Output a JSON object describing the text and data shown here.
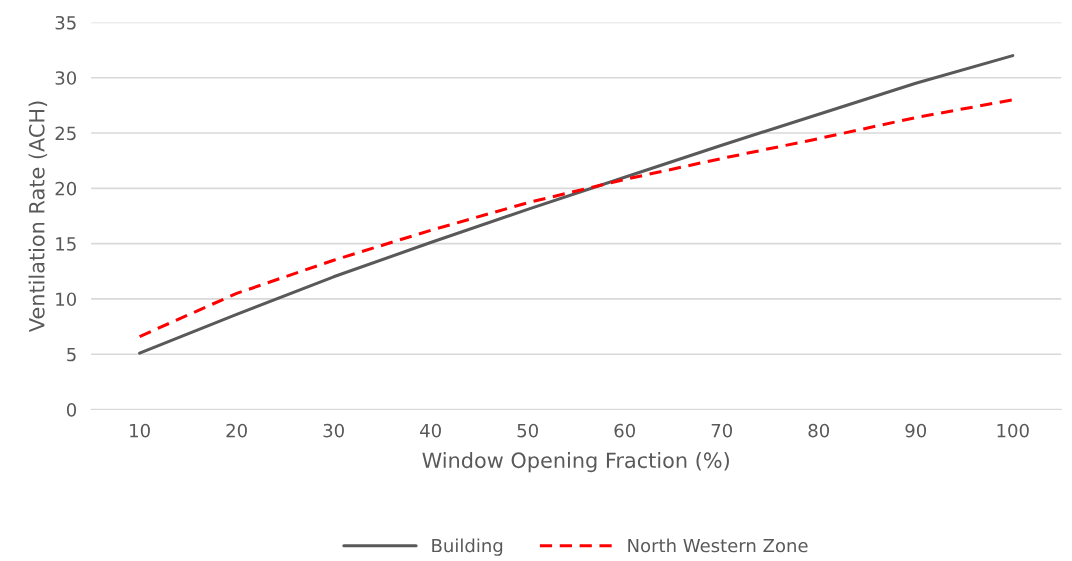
{
  "chart_data": {
    "type": "line",
    "xlabel": "Window Opening Fraction (%)",
    "ylabel": "Ventilation Rate (ACH)",
    "categories": [
      "10",
      "20",
      "30",
      "40",
      "50",
      "60",
      "70",
      "80",
      "90",
      "100"
    ],
    "series": [
      {
        "name": "Building",
        "color": "#595959",
        "line_style": "solid",
        "values": [
          5.1,
          8.6,
          12,
          15.1,
          18.1,
          21,
          23.9,
          26.7,
          29.5,
          32
        ]
      },
      {
        "name": "North Western Zone",
        "color": "#ff0000",
        "line_style": "dashed",
        "values": [
          6.6,
          10.5,
          13.5,
          16.2,
          18.7,
          20.8,
          22.7,
          24.5,
          26.4,
          28
        ]
      }
    ],
    "ylim": [
      0,
      35
    ],
    "yticks": [
      0,
      5,
      10,
      15,
      20,
      25,
      30,
      35
    ],
    "grid": "y",
    "legend": "bottom",
    "marker": "none"
  }
}
